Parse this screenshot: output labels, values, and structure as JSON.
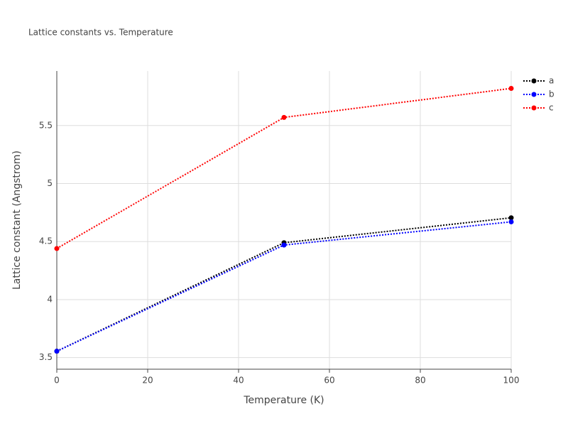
{
  "chart_data": {
    "type": "line",
    "title": "Lattice constants vs. Temperature",
    "x_label": "Temperature (K)",
    "y_label": "Lattice constant (Angstrom)",
    "x": [
      0,
      50,
      100
    ],
    "series": [
      {
        "name": "a",
        "color": "#000000",
        "values": [
          3.555,
          4.49,
          4.705
        ]
      },
      {
        "name": "b",
        "color": "#0000ff",
        "values": [
          3.555,
          4.47,
          4.67
        ]
      },
      {
        "name": "c",
        "color": "#ff0000",
        "values": [
          4.44,
          5.57,
          5.82
        ]
      }
    ],
    "xlim": [
      0,
      100
    ],
    "xticks": [
      0,
      20,
      40,
      60,
      80,
      100
    ],
    "ylim": [
      3.4,
      5.97
    ],
    "yticks": [
      3.5,
      4,
      4.5,
      5,
      5.5
    ],
    "grid": true,
    "legend": "right"
  }
}
